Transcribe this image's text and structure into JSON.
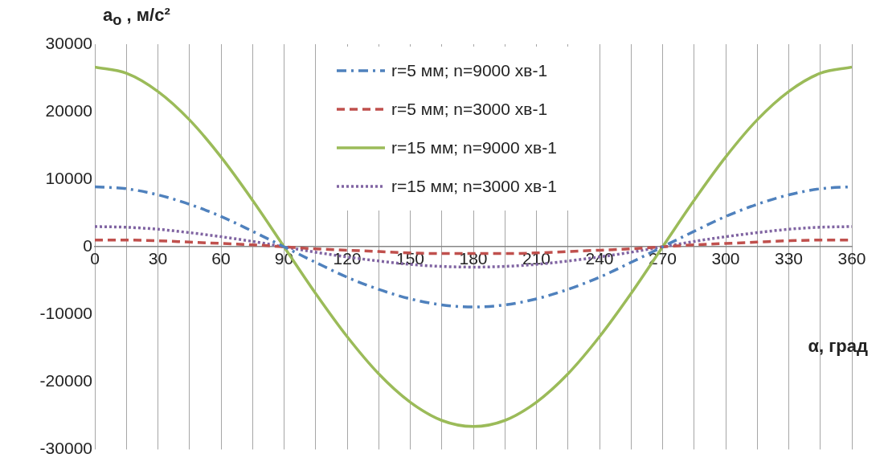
{
  "chart_data": {
    "type": "line",
    "ylabel": "a$_{o}$ , м/с²",
    "xlabel": "α, град",
    "x": [
      0,
      15,
      30,
      45,
      60,
      75,
      90,
      105,
      120,
      135,
      150,
      165,
      180,
      195,
      210,
      225,
      240,
      255,
      270,
      285,
      300,
      315,
      330,
      345,
      360
    ],
    "xlim": [
      0,
      360
    ],
    "xticks": [
      0,
      {
        "value": 15,
        "label": null
      },
      30,
      {
        "value": 45,
        "label": null
      },
      60,
      {
        "value": 75,
        "label": null
      },
      90,
      {
        "value": 105,
        "label": null
      },
      120,
      {
        "value": 135,
        "label": null
      },
      150,
      {
        "value": 165,
        "label": null
      },
      180,
      {
        "value": 195,
        "label": null
      },
      210,
      {
        "value": 225,
        "label": null
      },
      240,
      {
        "value": 255,
        "label": null
      },
      270,
      {
        "value": 285,
        "label": null
      },
      300,
      {
        "value": 315,
        "label": null
      },
      330,
      {
        "value": 345,
        "label": null
      },
      360
    ],
    "ylim": [
      -30000,
      30000
    ],
    "yticks": [
      -30000,
      -20000,
      -10000,
      0,
      10000,
      20000,
      30000
    ],
    "grid": "x",
    "legend": "top",
    "marker": "none",
    "series": [
      {
        "name": "r=5 мм; n=9000 хв-1",
        "color": "#4f81bd",
        "line_style": "dashdot",
        "values": [
          8900,
          8600,
          7700,
          6300,
          4500,
          2300,
          0,
          -2300,
          -4500,
          -6300,
          -7700,
          -8600,
          -8900,
          -8600,
          -7700,
          -6300,
          -4500,
          -2300,
          0,
          2300,
          4500,
          6300,
          7700,
          8600,
          8900
        ]
      },
      {
        "name": "r=5 мм; n=3000 хв-1",
        "color": "#c0504d",
        "line_style": "dashed",
        "values": [
          1000,
          1000,
          900,
          700,
          500,
          300,
          0,
          -300,
          -500,
          -700,
          -900,
          -1000,
          -1000,
          -1000,
          -900,
          -700,
          -500,
          -300,
          0,
          300,
          500,
          700,
          900,
          1000,
          1000
        ]
      },
      {
        "name": "r=15 мм; n=9000 хв-1",
        "color": "#9bbb59",
        "line_style": "solid",
        "values": [
          26600,
          25700,
          23000,
          18800,
          13300,
          6900,
          0,
          -6900,
          -13300,
          -18800,
          -23000,
          -25700,
          -26600,
          -25700,
          -23000,
          -18800,
          -13300,
          -6900,
          0,
          6900,
          13300,
          18800,
          23000,
          25700,
          26600
        ]
      },
      {
        "name": "r=15 мм; n=3000 хв-1",
        "color": "#8064a2",
        "line_style": "dotted",
        "values": [
          3000,
          2900,
          2600,
          2100,
          1500,
          800,
          0,
          -800,
          -1500,
          -2100,
          -2600,
          -2900,
          -3000,
          -2900,
          -2600,
          -2100,
          -1500,
          -800,
          0,
          800,
          1500,
          2100,
          2600,
          2900,
          3000
        ]
      }
    ]
  }
}
